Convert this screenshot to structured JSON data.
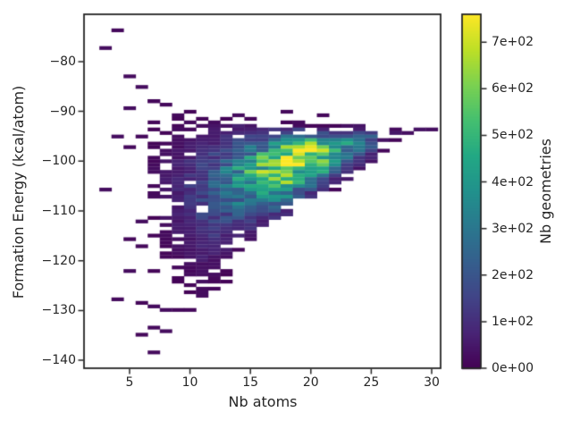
{
  "figure": {
    "background": "#ffffff",
    "text_color": "#262626",
    "spine_color": "#262626"
  },
  "chart_data": {
    "type": "heatmap",
    "subtype": "hist2d",
    "title": "",
    "xlabel": "Nb atoms",
    "ylabel": "Formation Energy (kcal/atom)",
    "colorbar_label": "Nb geometries",
    "colormap": "viridis",
    "grid": false,
    "xlim": [
      1.23,
      30.74
    ],
    "ylim": [
      -141.6,
      -70.5
    ],
    "vmin": 0,
    "vmax": 760,
    "x_bin_width": 1,
    "y_bin_count": 100,
    "xticks": [
      5,
      10,
      15,
      20,
      25,
      30
    ],
    "xtick_labels": [
      "5",
      "10",
      "15",
      "20",
      "25",
      "30"
    ],
    "yticks": [
      -80,
      -90,
      -100,
      -110,
      -120,
      -130,
      -140
    ],
    "ytick_labels": [
      "−80",
      "−90",
      "−100",
      "−110",
      "−120",
      "−130",
      "−140"
    ],
    "colorbar_ticks": [
      0,
      100,
      200,
      300,
      400,
      500,
      600,
      700
    ],
    "colorbar_tick_labels": [
      "0e+00",
      "1e+02",
      "2e+02",
      "3e+02",
      "4e+02",
      "5e+02",
      "6e+02",
      "7e+02"
    ],
    "viridis_stops": [
      "#440154",
      "#482475",
      "#414487",
      "#355f8d",
      "#2a788e",
      "#21918c",
      "#22a884",
      "#44bf70",
      "#7ad151",
      "#bddf26",
      "#fde725"
    ],
    "columns": [
      {
        "x": 7,
        "sparse_top": -87.8,
        "top": -94.0,
        "peak_y": -103.0,
        "peak": 26,
        "bottom": -112.0,
        "sparse_bottom": -125.5,
        "fill": 0.45
      },
      {
        "x": 8,
        "sparse_top": -88.3,
        "top": -92.5,
        "peak_y": -104.0,
        "peak": 45,
        "bottom": -122.5,
        "sparse_bottom": -124.5,
        "fill": 0.55
      },
      {
        "x": 9,
        "sparse_top": -89.0,
        "top": -90.8,
        "peak_y": -104.5,
        "peak": 75,
        "bottom": -124.3,
        "sparse_bottom": -127.0,
        "fill": 0.78
      },
      {
        "x": 10,
        "sparse_top": -89.8,
        "top": -91.3,
        "peak_y": -104.6,
        "peak": 115,
        "bottom": -124.8,
        "sparse_bottom": -127.5,
        "fill": 0.93
      },
      {
        "x": 11,
        "sparse_top": -90.2,
        "top": -91.5,
        "peak_y": -104.3,
        "peak": 155,
        "bottom": -126.8,
        "sparse_bottom": -127.5,
        "fill": 0.95
      },
      {
        "x": 12,
        "sparse_top": -90.2,
        "top": -91.7,
        "peak_y": -103.8,
        "peak": 205,
        "bottom": -123.8,
        "sparse_bottom": -126.5,
        "fill": 0.97
      },
      {
        "x": 13,
        "sparse_top": -90.2,
        "top": -92.0,
        "peak_y": -103.3,
        "peak": 280,
        "bottom": -119.3,
        "sparse_bottom": -125.0,
        "fill": 1
      },
      {
        "x": 14,
        "sparse_top": -90.5,
        "top": -92.3,
        "peak_y": -102.8,
        "peak": 380,
        "bottom": -117.2,
        "sparse_bottom": -118.5,
        "fill": 1
      },
      {
        "x": 15,
        "sparse_top": -90.8,
        "top": -92.7,
        "peak_y": -102.2,
        "peak": 450,
        "bottom": -115.8,
        "sparse_bottom": -117.0,
        "fill": 1
      },
      {
        "x": 16,
        "sparse_top": -91.5,
        "top": -92.9,
        "peak_y": -101.5,
        "peak": 520,
        "bottom": -113.3,
        "sparse_bottom": -115.0,
        "fill": 1
      },
      {
        "x": 17,
        "sparse_top": -92.0,
        "top": -93.0,
        "peak_y": -100.8,
        "peak": 640,
        "bottom": -112.3,
        "sparse_bottom": -113.5,
        "fill": 1
      },
      {
        "x": 18,
        "sparse_top": -92.0,
        "top": -93.0,
        "peak_y": -100.2,
        "peak": 760,
        "bottom": -110.8,
        "sparse_bottom": -112.0,
        "fill": 1
      },
      {
        "x": 19,
        "sparse_top": -92.3,
        "top": -93.0,
        "peak_y": -98.6,
        "peak": 700,
        "bottom": -109.2,
        "sparse_bottom": -110.5,
        "fill": 1
      },
      {
        "x": 20,
        "sparse_top": -92.3,
        "top": -93.1,
        "peak_y": -98.4,
        "peak": 710,
        "bottom": -107.6,
        "sparse_bottom": -109.0,
        "fill": 1
      },
      {
        "x": 21,
        "sparse_top": -92.3,
        "top": -93.1,
        "peak_y": -98.6,
        "peak": 560,
        "bottom": -106.4,
        "sparse_bottom": -107.5,
        "fill": 1
      },
      {
        "x": 22,
        "sparse_top": -92.5,
        "top": -92.9,
        "peak_y": -97.3,
        "peak": 430,
        "bottom": -105.2,
        "sparse_bottom": -106.0,
        "fill": 1
      },
      {
        "x": 23,
        "sparse_top": -92.6,
        "top": -92.8,
        "peak_y": -96.5,
        "peak": 360,
        "bottom": -103.8,
        "sparse_bottom": -104.5,
        "fill": 1
      },
      {
        "x": 24,
        "sparse_top": -92.6,
        "top": -92.8,
        "peak_y": -96.3,
        "peak": 290,
        "bottom": -102.4,
        "sparse_bottom": -103.0,
        "fill": 1
      },
      {
        "x": 25,
        "sparse_top": -92.7,
        "top": -92.9,
        "peak_y": -95.8,
        "peak": 220,
        "bottom": -100.9,
        "sparse_bottom": -102.0,
        "fill": 0.95
      },
      {
        "x": 26,
        "sparse_top": -93.1,
        "top": -93.1,
        "peak_y": -94.8,
        "peak": 55,
        "bottom": -96.4,
        "sparse_bottom": -99.0,
        "fill": 0.4
      },
      {
        "x": 27,
        "sparse_top": -93.5,
        "top": -93.5,
        "peak_y": -94.3,
        "peak": 65,
        "bottom": -95.0,
        "sparse_bottom": -96.0,
        "fill": 0.8
      },
      {
        "x": 28,
        "sparse_top": -93.4,
        "top": -93.4,
        "peak_y": -94.0,
        "peak": 38,
        "bottom": -94.7,
        "sparse_bottom": -95.5,
        "fill": 0.5
      },
      {
        "x": 29,
        "sparse_top": -93.4,
        "top": -93.4,
        "peak_y": -93.9,
        "peak": 40,
        "bottom": -94.5,
        "sparse_bottom": -94.8,
        "fill": 0.65
      },
      {
        "x": 30,
        "sparse_top": -93.5,
        "top": -93.5,
        "peak_y": -93.9,
        "peak": 30,
        "bottom": -94.2,
        "sparse_bottom": -94.2,
        "fill": 0.9
      }
    ],
    "outlier_bins": [
      [
        3,
        -77.3
      ],
      [
        3,
        -105.6
      ],
      [
        4,
        -73.9
      ],
      [
        4,
        -95.3
      ],
      [
        4,
        -127.6
      ],
      [
        5,
        -83.2
      ],
      [
        5,
        -89.5
      ],
      [
        5,
        -96.9
      ],
      [
        5,
        -115.9
      ],
      [
        5,
        -122.0
      ],
      [
        6,
        -85.2
      ],
      [
        6,
        -95.3
      ],
      [
        6,
        -112.1
      ],
      [
        6,
        -117.3
      ],
      [
        6,
        -128.4
      ],
      [
        6,
        -134.9
      ],
      [
        7,
        -88.2
      ],
      [
        7,
        -129.3
      ],
      [
        7,
        -133.2
      ],
      [
        7,
        -138.4
      ],
      [
        8,
        -88.8
      ],
      [
        8,
        -130.2
      ],
      [
        8,
        -133.8
      ],
      [
        9,
        -130.0
      ],
      [
        10,
        -130.1
      ],
      [
        11,
        -126.9
      ],
      [
        18,
        -90.1
      ],
      [
        19,
        -91.9
      ],
      [
        21,
        -90.8
      ]
    ]
  }
}
